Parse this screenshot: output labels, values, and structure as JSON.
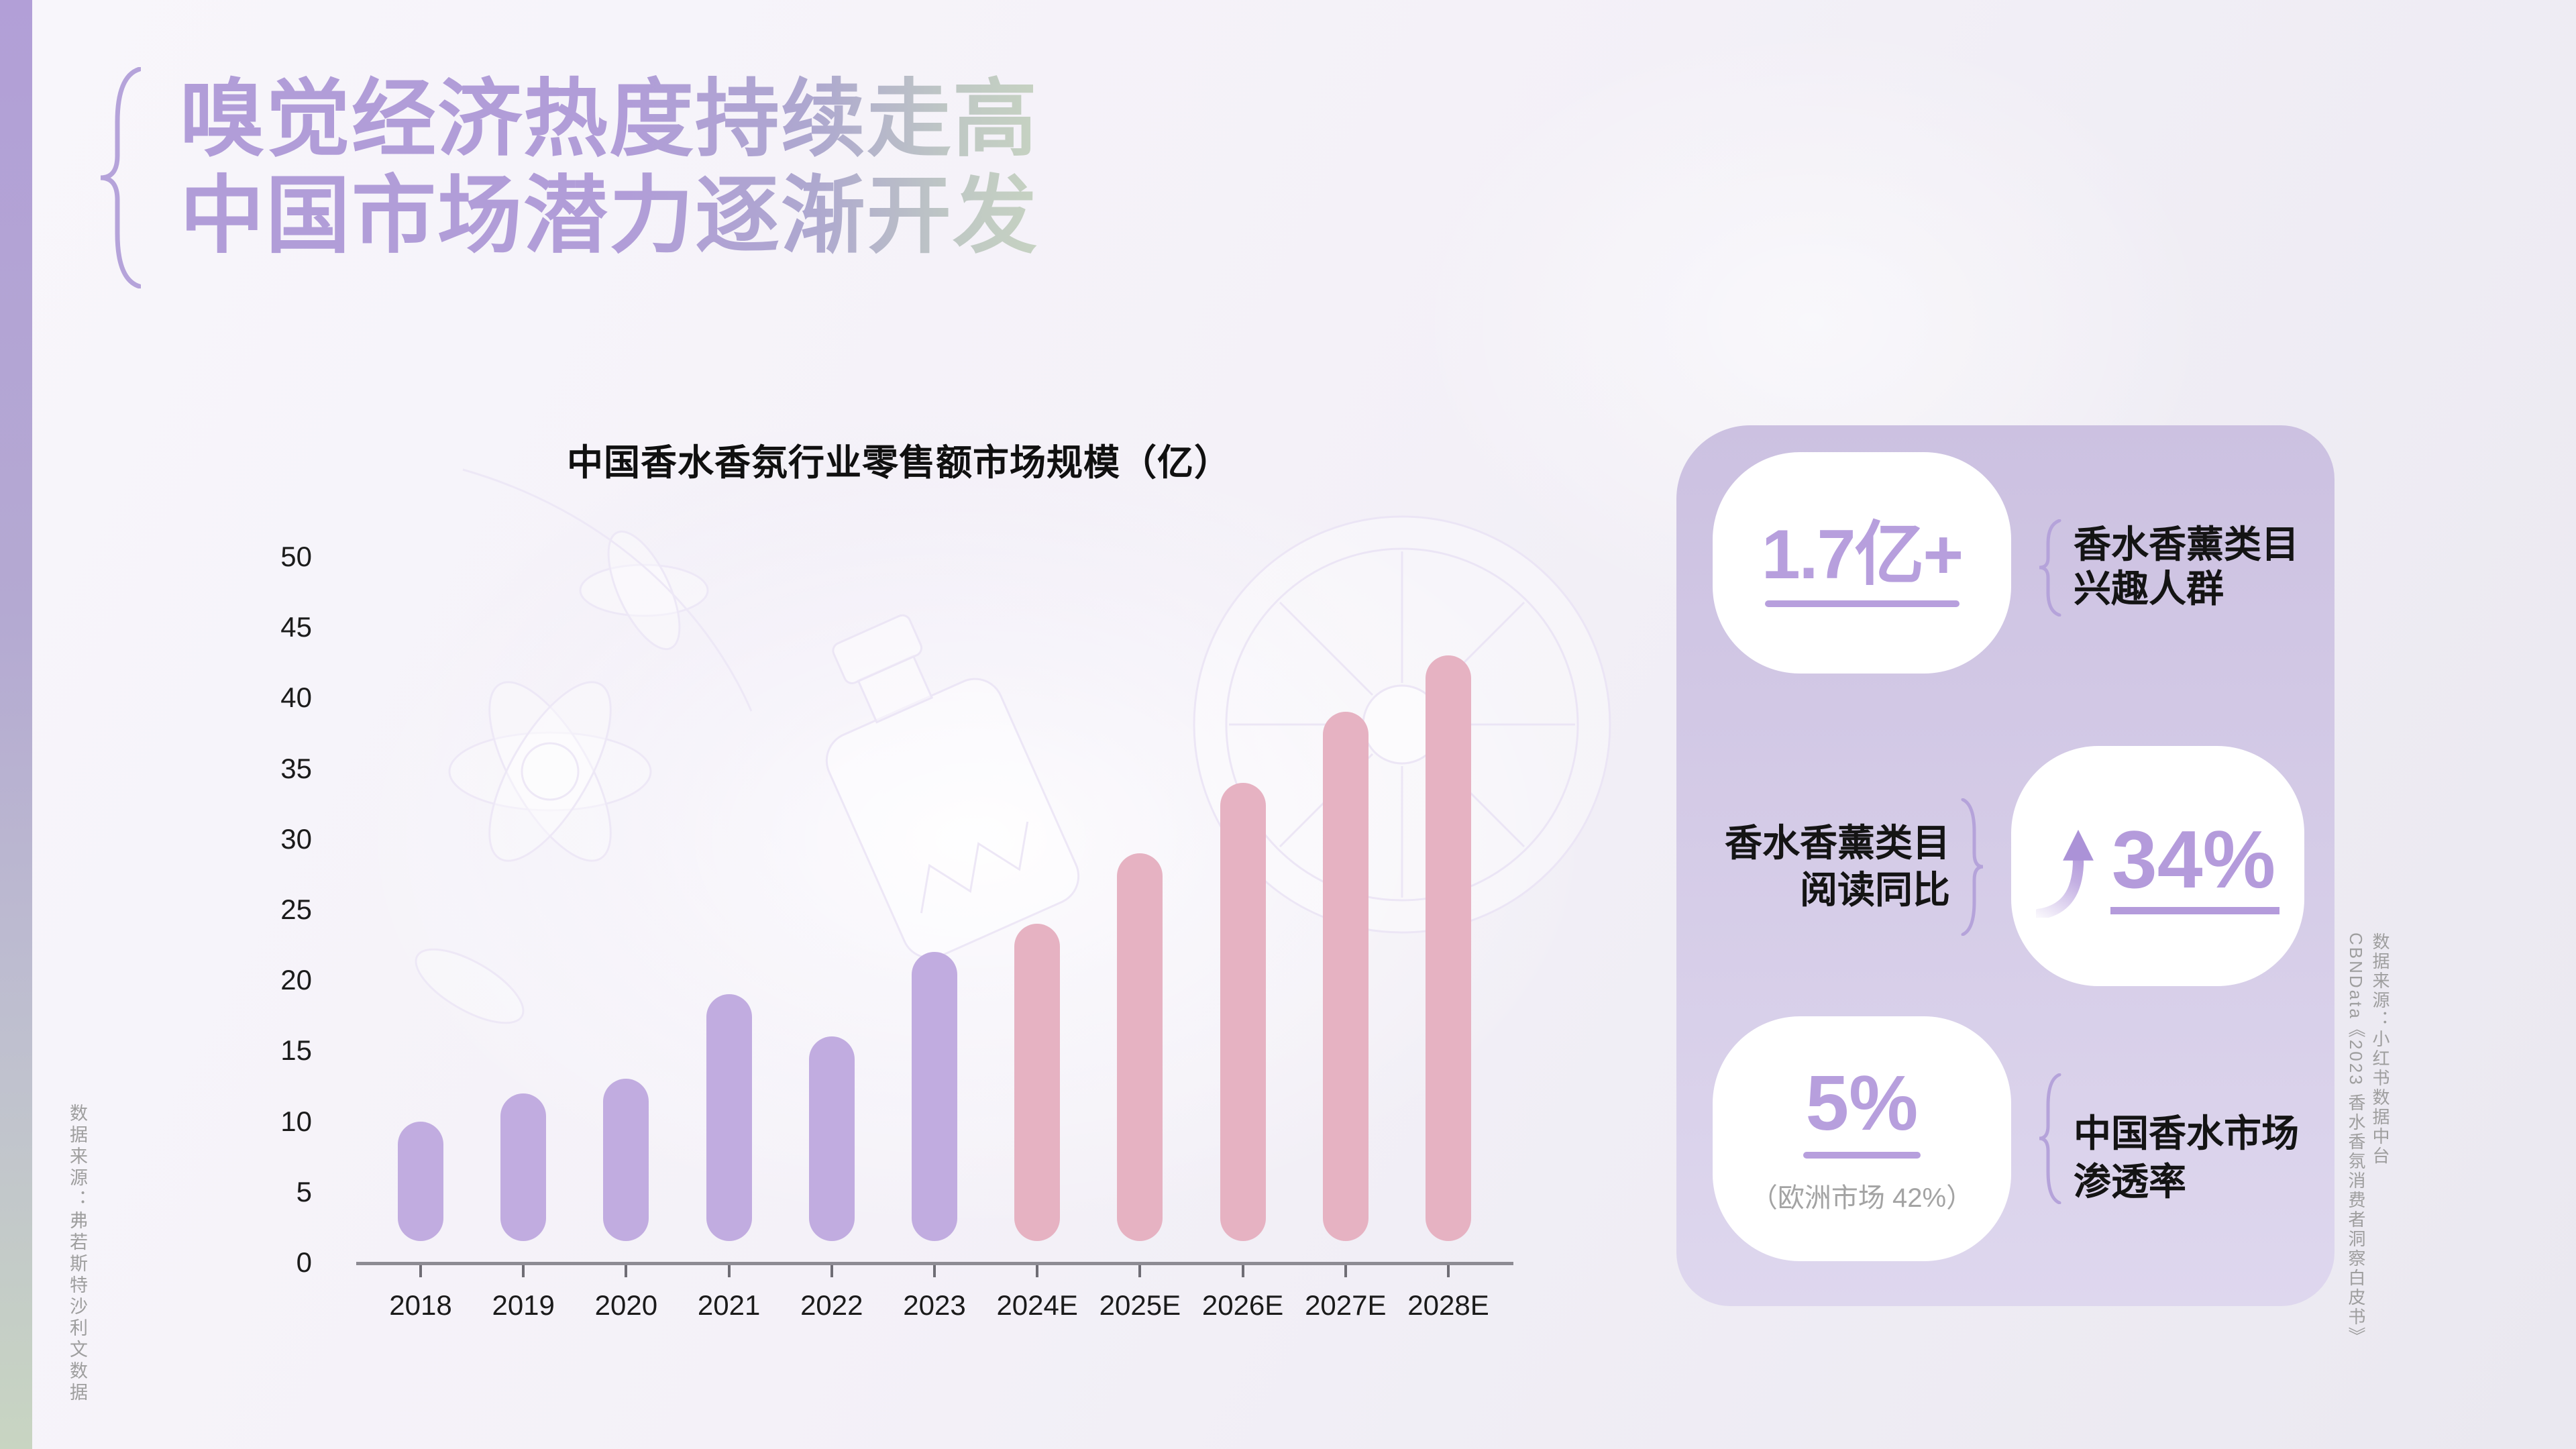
{
  "title": {
    "line1": "嗅觉经济热度持续走高",
    "line2": "中国市场潜力逐渐开发"
  },
  "chart_data": {
    "type": "bar",
    "title": "中国香水香氛行业零售额市场规模（亿）",
    "categories": [
      "2018",
      "2019",
      "2020",
      "2021",
      "2022",
      "2023",
      "2024E",
      "2025E",
      "2026E",
      "2027E",
      "2028E"
    ],
    "values": [
      10,
      12,
      13,
      19,
      16,
      22,
      24,
      29,
      34,
      39,
      43
    ],
    "forecast_from_index": 6,
    "xlabel": "",
    "ylabel": "",
    "ylim": [
      0,
      50
    ],
    "ytick_step": 5,
    "grid": false,
    "legend": "none",
    "series_colors": {
      "historical": "#c1ace0",
      "forecast": "#e6b2c2"
    }
  },
  "panel": {
    "stats": [
      {
        "value": "1.7亿+",
        "label_line1": "香水香薰类目",
        "label_line2": "兴趣人群"
      },
      {
        "value": "34%",
        "arrow": "up",
        "label_line1": "香水香薰类目",
        "label_line2": "阅读同比"
      },
      {
        "value": "5%",
        "sub": "（欧洲市场 42%）",
        "label_line1": "中国香水市场",
        "label_line2": "渗透率"
      }
    ]
  },
  "sources": {
    "left": "数据来源：弗若斯特沙利文数据",
    "right_line1": "数据来源：小红书数据中台",
    "right_line2": "CBNData《2023 香水香氛消费者洞察白皮书》"
  },
  "colors": {
    "accent_purple": "#b79fdd",
    "bar_purple": "#c1ace0",
    "bar_pink": "#e6b2c2",
    "panel_top": "#ccc1e1",
    "panel_bottom": "#ded7ee",
    "title_gradient_start": "#b19dd8",
    "title_gradient_end": "#c6d2c2",
    "sidebar_top": "#b29fd7",
    "sidebar_bottom": "#c8d5c2",
    "text_dark": "#141414",
    "text_gray": "#9e9e9e"
  }
}
